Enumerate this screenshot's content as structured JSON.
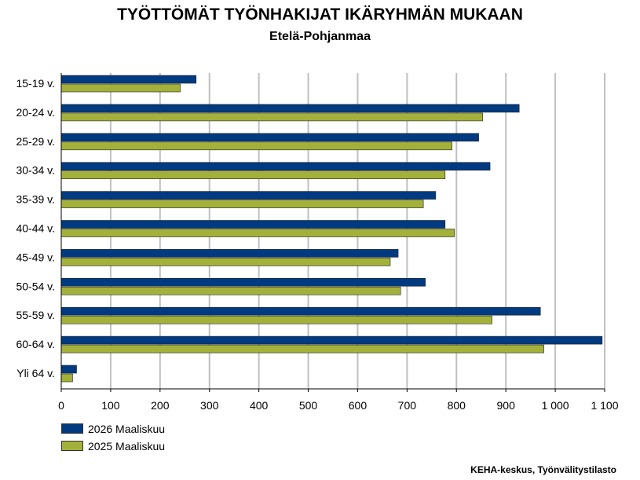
{
  "chart_data": {
    "type": "bar",
    "orientation": "horizontal",
    "title": "TYÖTTÖMÄT TYÖNHAKIJAT IKÄRYHMÄN MUKAAN",
    "subtitle": "Etelä-Pohjanmaa",
    "categories": [
      "15-19 v.",
      "20-24 v.",
      "25-29 v.",
      "30-34 v.",
      "35-39 v.",
      "40-44 v.",
      "45-49 v.",
      "50-54 v.",
      "55-59 v.",
      "60-64 v.",
      "Yli 64 v."
    ],
    "series": [
      {
        "name": "2026 Maaliskuu",
        "color": "#003A80",
        "values": [
          273,
          927,
          845,
          868,
          758,
          777,
          682,
          737,
          970,
          1095,
          31
        ]
      },
      {
        "name": "2025 Maaliskuu",
        "color": "#A3B13A",
        "values": [
          241,
          853,
          791,
          777,
          733,
          796,
          666,
          687,
          872,
          977,
          23
        ]
      }
    ],
    "xlim": [
      0,
      1100
    ],
    "ticks": [
      0,
      100,
      200,
      300,
      400,
      500,
      600,
      700,
      800,
      900,
      1000,
      1100
    ],
    "tick_labels": [
      "0",
      "100",
      "200",
      "300",
      "400",
      "500",
      "600",
      "700",
      "800",
      "900",
      "1 000",
      "1 100"
    ],
    "grid": true,
    "legend_position": "bottom-left",
    "source": "KEHA-keskus, Työnvälitystilasto"
  }
}
